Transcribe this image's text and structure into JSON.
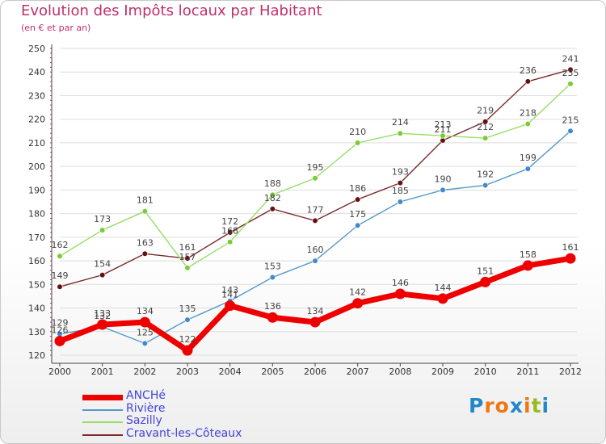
{
  "chart_data": {
    "type": "line",
    "title": "Evolution des Impôts locaux par Habitant",
    "subtitle": "(en € et par an)",
    "categories": [
      "2000",
      "2001",
      "2002",
      "2003",
      "2004",
      "2005",
      "2006",
      "2007",
      "2008",
      "2009",
      "2010",
      "2011",
      "2012"
    ],
    "ylim": [
      120,
      250
    ],
    "yticks": [
      120,
      130,
      140,
      150,
      160,
      170,
      180,
      190,
      200,
      210,
      220,
      230,
      240,
      250
    ],
    "grid": "horizontal",
    "series": [
      {
        "name": "ANCHé",
        "color": "#ee0000",
        "marker": "#ee0000",
        "values": [
          126,
          133,
          134,
          122,
          141,
          136,
          134,
          142,
          146,
          144,
          151,
          158,
          161
        ],
        "labels": [
          "126",
          "133",
          "134",
          "122",
          "141",
          "136",
          "134",
          "142",
          "146",
          "144",
          "151",
          "158",
          "161"
        ]
      },
      {
        "name": "Rivière",
        "color": "#5599cc",
        "marker": "#4488cc",
        "values": [
          129,
          132,
          125,
          135,
          143,
          153,
          160,
          175,
          185,
          190,
          192,
          199,
          215
        ],
        "labels": [
          "129",
          "132",
          "125",
          "135",
          "143",
          "153",
          "160",
          "175",
          "185",
          "190",
          "192",
          "199",
          "215"
        ]
      },
      {
        "name": "Sazilly",
        "color": "#99dd66",
        "marker": "#77cc33",
        "values": [
          162,
          173,
          181,
          157,
          168,
          188,
          195,
          210,
          214,
          213,
          212,
          218,
          235
        ],
        "labels": [
          "162",
          "173",
          "181",
          "157",
          "168",
          "188",
          "195",
          "210",
          "214",
          "213",
          "212",
          "218",
          "235"
        ]
      },
      {
        "name": "Cravant-les-Côteaux",
        "color": "#7a2a2a",
        "marker": "#661111",
        "values": [
          149,
          154,
          163,
          161,
          172,
          182,
          177,
          186,
          193,
          211,
          219,
          236,
          241
        ],
        "labels": [
          "149",
          "154",
          "163",
          "161",
          "172",
          "182",
          "177",
          "186",
          "193",
          "211",
          "219",
          "236",
          "241"
        ]
      }
    ]
  },
  "logo": {
    "letters": [
      "P",
      "r",
      "o",
      "x",
      "i",
      "t",
      "i"
    ],
    "colors": [
      "#2288cc",
      "#ee7711",
      "#ee7711",
      "#2288cc",
      "#ee7711",
      "#99bb22",
      "#2288cc"
    ]
  }
}
